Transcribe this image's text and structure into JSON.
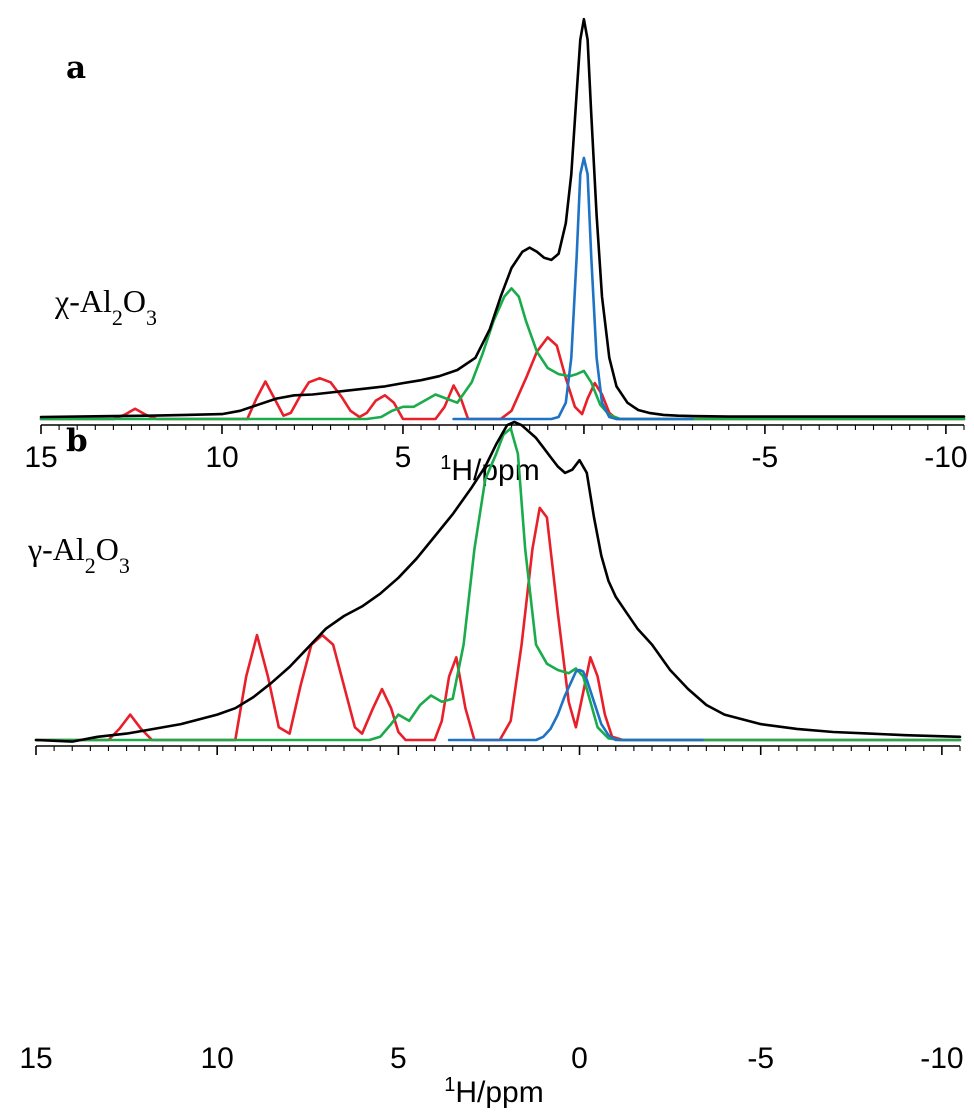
{
  "chart_data": [
    {
      "type": "line",
      "panel": "a",
      "sample_label": {
        "prefix": "χ-Al",
        "sub1": "2",
        "mid": "O",
        "sub2": "3"
      },
      "xlabel": {
        "sup": "1",
        "text": "H/ppm"
      },
      "xlim": [
        15,
        -10.5
      ],
      "xticks": [
        15,
        10,
        5,
        -5,
        -10
      ],
      "xtick_labels": [
        "15",
        "10",
        "5",
        "-5",
        "-10"
      ],
      "ylim": [
        0,
        1.0
      ],
      "grid": false,
      "colors": {
        "experimental": "#000000",
        "red": "#e8202a",
        "green": "#1aab4b",
        "blue": "#1f73c4"
      },
      "series": [
        {
          "color": "red",
          "x": [
            15,
            13.0,
            12.7,
            12.4,
            12.1,
            11.8,
            9.3,
            9.05,
            8.8,
            8.55,
            8.3,
            8.1,
            7.85,
            7.6,
            7.3,
            7.0,
            6.7,
            6.45,
            6.2,
            6.0,
            5.75,
            5.5,
            5.25,
            5.0,
            4.85,
            4.6,
            4.1,
            3.85,
            3.6,
            3.4,
            3.2,
            2.3,
            2.0,
            1.6,
            1.3,
            1.0,
            0.75,
            0.5,
            0.25,
            0.05,
            -0.1,
            -0.3,
            -0.5,
            -0.7,
            -0.9,
            -1.1,
            -10.5
          ],
          "y": [
            0.0,
            0.0,
            0.01,
            0.025,
            0.01,
            0.0,
            0.0,
            0.05,
            0.092,
            0.05,
            0.008,
            0.015,
            0.055,
            0.09,
            0.1,
            0.09,
            0.055,
            0.02,
            0.005,
            0.015,
            0.045,
            0.058,
            0.04,
            0.0,
            0.0,
            0.0,
            0.0,
            0.03,
            0.082,
            0.05,
            0.0,
            0.0,
            0.02,
            0.1,
            0.165,
            0.2,
            0.18,
            0.1,
            0.03,
            0.012,
            0.05,
            0.088,
            0.06,
            0.015,
            0.0,
            0.0,
            0.0
          ]
        },
        {
          "color": "green",
          "x": [
            15,
            6.0,
            5.6,
            5.3,
            5.0,
            4.7,
            4.4,
            4.1,
            3.8,
            3.5,
            3.1,
            2.8,
            2.5,
            2.2,
            2.0,
            1.8,
            1.6,
            1.3,
            1.0,
            0.7,
            0.4,
            0.2,
            0.0,
            -0.2,
            -0.45,
            -0.7,
            -1.0,
            -1.2,
            -10.5
          ],
          "y": [
            0.0,
            0.0,
            0.005,
            0.02,
            0.03,
            0.03,
            0.045,
            0.06,
            0.05,
            0.04,
            0.09,
            0.16,
            0.24,
            0.3,
            0.32,
            0.3,
            0.24,
            0.165,
            0.125,
            0.11,
            0.105,
            0.11,
            0.118,
            0.09,
            0.035,
            0.01,
            0.0,
            0.0,
            0.0
          ]
        },
        {
          "color": "blue",
          "x": [
            3.6,
            0.9,
            0.7,
            0.5,
            0.35,
            0.2,
            0.1,
            0.0,
            -0.1,
            -0.2,
            -0.35,
            -0.5,
            -0.7,
            -0.9,
            -3.0
          ],
          "y": [
            0.0,
            0.0,
            0.005,
            0.04,
            0.15,
            0.4,
            0.6,
            0.64,
            0.6,
            0.4,
            0.15,
            0.04,
            0.005,
            0.0,
            0.0
          ]
        },
        {
          "color": "experimental",
          "x": [
            15,
            13,
            12,
            11,
            10,
            9.5,
            9,
            8.5,
            8,
            7.5,
            7,
            6.5,
            6,
            5.5,
            5,
            4.5,
            4,
            3.5,
            3,
            2.6,
            2.3,
            2.0,
            1.7,
            1.5,
            1.3,
            1.1,
            0.9,
            0.7,
            0.5,
            0.35,
            0.2,
            0.1,
            0.0,
            -0.1,
            -0.2,
            -0.35,
            -0.5,
            -0.7,
            -0.9,
            -1.2,
            -1.5,
            -1.8,
            -2.2,
            -2.6,
            -3,
            -4,
            -6,
            -8,
            -10.5
          ],
          "y": [
            0.005,
            0.007,
            0.008,
            0.01,
            0.012,
            0.02,
            0.035,
            0.05,
            0.058,
            0.06,
            0.065,
            0.07,
            0.075,
            0.08,
            0.088,
            0.095,
            0.105,
            0.12,
            0.15,
            0.22,
            0.3,
            0.37,
            0.41,
            0.42,
            0.41,
            0.395,
            0.39,
            0.405,
            0.48,
            0.6,
            0.8,
            0.93,
            0.98,
            0.93,
            0.75,
            0.5,
            0.3,
            0.15,
            0.08,
            0.04,
            0.022,
            0.015,
            0.01,
            0.008,
            0.007,
            0.006,
            0.006,
            0.006,
            0.006
          ]
        }
      ]
    },
    {
      "type": "line",
      "panel": "b",
      "sample_label": {
        "prefix": "γ-Al",
        "sub1": "2",
        "mid": "O",
        "sub2": "3"
      },
      "xlabel": {
        "sup": "1",
        "text": "H/ppm"
      },
      "xlim": [
        15,
        -10.5
      ],
      "xticks": [
        15,
        10,
        5,
        0,
        -5,
        -10
      ],
      "xtick_labels": [
        "15",
        "10",
        "5",
        "0",
        "-5",
        "-10"
      ],
      "ylim": [
        0,
        1.0
      ],
      "grid": false,
      "colors": {
        "experimental": "#000000",
        "red": "#e8202a",
        "green": "#1aab4b",
        "blue": "#1f73c4"
      },
      "series": [
        {
          "color": "red",
          "x": [
            15,
            13.0,
            12.7,
            12.4,
            12.1,
            11.8,
            9.5,
            9.2,
            8.9,
            8.6,
            8.3,
            8.0,
            7.7,
            7.4,
            7.1,
            6.8,
            6.5,
            6.2,
            6.0,
            5.7,
            5.45,
            5.2,
            5.0,
            4.8,
            4.5,
            4.0,
            3.8,
            3.6,
            3.4,
            3.15,
            2.9,
            2.5,
            2.2,
            1.9,
            1.6,
            1.3,
            1.1,
            0.9,
            0.6,
            0.3,
            0.1,
            -0.1,
            -0.3,
            -0.5,
            -0.7,
            -0.9,
            -1.2,
            -10.5
          ],
          "y": [
            0.0,
            0.0,
            0.035,
            0.08,
            0.035,
            0.0,
            0.0,
            0.2,
            0.33,
            0.2,
            0.04,
            0.02,
            0.17,
            0.3,
            0.33,
            0.3,
            0.17,
            0.04,
            0.02,
            0.1,
            0.16,
            0.1,
            0.025,
            0.0,
            0.0,
            0.0,
            0.06,
            0.2,
            0.26,
            0.1,
            0.0,
            0.0,
            0.0,
            0.06,
            0.3,
            0.6,
            0.73,
            0.7,
            0.4,
            0.12,
            0.04,
            0.15,
            0.26,
            0.2,
            0.08,
            0.01,
            0.0,
            0.0
          ]
        },
        {
          "color": "green",
          "x": [
            15,
            5.8,
            5.5,
            5.2,
            5.0,
            4.7,
            4.4,
            4.1,
            3.8,
            3.5,
            3.2,
            2.9,
            2.6,
            2.3,
            2.1,
            1.9,
            1.7,
            1.5,
            1.2,
            0.9,
            0.6,
            0.3,
            0.1,
            -0.1,
            -0.3,
            -0.5,
            -0.8,
            -1.1,
            -10.5
          ],
          "y": [
            0.0,
            0.0,
            0.01,
            0.05,
            0.08,
            0.06,
            0.11,
            0.14,
            0.12,
            0.13,
            0.3,
            0.6,
            0.82,
            0.9,
            0.96,
            0.98,
            0.9,
            0.6,
            0.3,
            0.24,
            0.22,
            0.21,
            0.225,
            0.2,
            0.12,
            0.04,
            0.005,
            0.0,
            0.0
          ]
        },
        {
          "color": "blue",
          "x": [
            3.6,
            1.2,
            1.0,
            0.8,
            0.6,
            0.4,
            0.2,
            0.1,
            0.0,
            -0.1,
            -0.2,
            -0.4,
            -0.6,
            -0.8,
            -1.0,
            -3.4
          ],
          "y": [
            0.0,
            0.0,
            0.01,
            0.035,
            0.08,
            0.14,
            0.19,
            0.215,
            0.22,
            0.215,
            0.19,
            0.12,
            0.05,
            0.015,
            0.0,
            0.0
          ]
        },
        {
          "color": "experimental",
          "x": [
            15,
            14,
            13.3,
            12.5,
            12,
            11,
            10,
            9.5,
            9,
            8.5,
            8,
            7.5,
            7,
            6.5,
            6,
            5.5,
            5,
            4.5,
            4,
            3.5,
            3,
            2.6,
            2.3,
            2.0,
            1.8,
            1.6,
            1.4,
            1.2,
            1.0,
            0.8,
            0.6,
            0.4,
            0.2,
            0.0,
            -0.2,
            -0.4,
            -0.6,
            -0.8,
            -1.0,
            -1.3,
            -1.6,
            -2.0,
            -2.5,
            -3.0,
            -3.5,
            -4.0,
            -5,
            -6,
            -7,
            -8,
            -9,
            -10.5
          ],
          "y": [
            0.0,
            -0.005,
            0.01,
            0.02,
            0.03,
            0.05,
            0.08,
            0.1,
            0.135,
            0.18,
            0.23,
            0.29,
            0.35,
            0.39,
            0.42,
            0.46,
            0.51,
            0.57,
            0.64,
            0.71,
            0.79,
            0.86,
            0.93,
            0.99,
            1.0,
            0.99,
            0.97,
            0.95,
            0.92,
            0.89,
            0.86,
            0.84,
            0.85,
            0.88,
            0.84,
            0.7,
            0.58,
            0.5,
            0.45,
            0.4,
            0.35,
            0.3,
            0.22,
            0.16,
            0.11,
            0.08,
            0.05,
            0.035,
            0.025,
            0.02,
            0.015,
            0.01
          ]
        }
      ]
    }
  ]
}
